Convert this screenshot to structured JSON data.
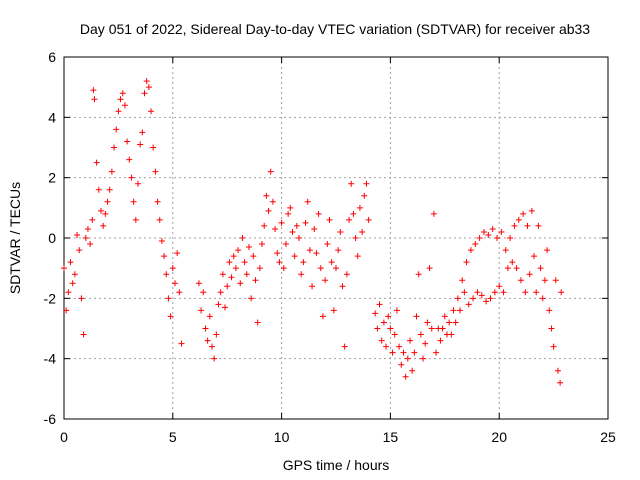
{
  "chart_data": {
    "type": "scatter",
    "title": "Day 051 of 2022, Sidereal Day-to-day VTEC variation (SDTVAR) for receiver ab33",
    "xlabel": "GPS time / hours",
    "ylabel": "SDTVAR / TECUs",
    "xlim": [
      0,
      25
    ],
    "ylim": [
      -6,
      6
    ],
    "xticks": [
      0,
      5,
      10,
      15,
      20,
      25
    ],
    "yticks": [
      -6,
      -4,
      -2,
      0,
      2,
      4,
      6
    ],
    "grid": true,
    "marker": "+",
    "color": "#ff0000",
    "series": [
      {
        "name": "SDTVAR",
        "points": [
          [
            0.0,
            -1.0
          ],
          [
            0.1,
            -2.4
          ],
          [
            0.2,
            -1.8
          ],
          [
            0.3,
            -0.8
          ],
          [
            0.4,
            -1.5
          ],
          [
            0.5,
            -1.2
          ],
          [
            0.6,
            0.1
          ],
          [
            0.7,
            -0.4
          ],
          [
            0.8,
            -2.0
          ],
          [
            0.9,
            -3.2
          ],
          [
            1.0,
            0.0
          ],
          [
            1.1,
            0.3
          ],
          [
            1.2,
            -0.2
          ],
          [
            1.3,
            0.6
          ],
          [
            1.35,
            4.9
          ],
          [
            1.4,
            4.6
          ],
          [
            1.5,
            2.5
          ],
          [
            1.6,
            1.6
          ],
          [
            1.7,
            0.9
          ],
          [
            1.8,
            0.4
          ],
          [
            1.9,
            0.8
          ],
          [
            2.0,
            1.2
          ],
          [
            2.1,
            1.6
          ],
          [
            2.2,
            2.2
          ],
          [
            2.3,
            3.0
          ],
          [
            2.4,
            3.6
          ],
          [
            2.5,
            4.2
          ],
          [
            2.6,
            4.6
          ],
          [
            2.7,
            4.8
          ],
          [
            2.8,
            4.4
          ],
          [
            2.9,
            3.2
          ],
          [
            3.0,
            2.6
          ],
          [
            3.1,
            2.0
          ],
          [
            3.2,
            1.2
          ],
          [
            3.3,
            0.6
          ],
          [
            3.4,
            1.8
          ],
          [
            3.5,
            3.1
          ],
          [
            3.6,
            3.5
          ],
          [
            3.7,
            4.8
          ],
          [
            3.8,
            5.2
          ],
          [
            3.9,
            5.0
          ],
          [
            4.0,
            4.2
          ],
          [
            4.1,
            3.0
          ],
          [
            4.2,
            2.2
          ],
          [
            4.3,
            1.2
          ],
          [
            4.4,
            0.6
          ],
          [
            4.5,
            -0.1
          ],
          [
            4.6,
            -0.6
          ],
          [
            4.7,
            -1.2
          ],
          [
            4.8,
            -2.0
          ],
          [
            4.9,
            -2.6
          ],
          [
            5.0,
            -1.0
          ],
          [
            5.1,
            -1.5
          ],
          [
            5.2,
            -0.5
          ],
          [
            5.3,
            -1.8
          ],
          [
            5.4,
            -3.5
          ],
          [
            6.2,
            -1.5
          ],
          [
            6.3,
            -2.4
          ],
          [
            6.4,
            -1.8
          ],
          [
            6.5,
            -3.0
          ],
          [
            6.6,
            -3.4
          ],
          [
            6.7,
            -2.6
          ],
          [
            6.8,
            -3.6
          ],
          [
            6.9,
            -4.0
          ],
          [
            7.0,
            -3.2
          ],
          [
            7.1,
            -2.2
          ],
          [
            7.2,
            -1.8
          ],
          [
            7.3,
            -1.2
          ],
          [
            7.4,
            -2.3
          ],
          [
            7.5,
            -1.6
          ],
          [
            7.6,
            -0.8
          ],
          [
            7.7,
            -1.3
          ],
          [
            7.8,
            -0.6
          ],
          [
            7.9,
            -1.0
          ],
          [
            8.0,
            -0.4
          ],
          [
            8.1,
            -1.5
          ],
          [
            8.2,
            0.0
          ],
          [
            8.3,
            -0.8
          ],
          [
            8.4,
            -1.2
          ],
          [
            8.5,
            -0.3
          ],
          [
            8.6,
            -2.0
          ],
          [
            8.7,
            -0.6
          ],
          [
            8.8,
            -1.4
          ],
          [
            8.9,
            -2.8
          ],
          [
            9.0,
            -1.0
          ],
          [
            9.1,
            -0.2
          ],
          [
            9.2,
            0.4
          ],
          [
            9.3,
            1.4
          ],
          [
            9.4,
            0.9
          ],
          [
            9.5,
            2.2
          ],
          [
            9.6,
            1.2
          ],
          [
            9.7,
            0.3
          ],
          [
            9.8,
            -0.5
          ],
          [
            9.9,
            -0.8
          ],
          [
            10.0,
            0.5
          ],
          [
            10.1,
            -1.0
          ],
          [
            10.2,
            -0.2
          ],
          [
            10.3,
            0.8
          ],
          [
            10.4,
            1.0
          ],
          [
            10.5,
            0.2
          ],
          [
            10.6,
            -0.6
          ],
          [
            10.7,
            0.4
          ],
          [
            10.8,
            0.0
          ],
          [
            10.9,
            -1.2
          ],
          [
            11.0,
            -0.8
          ],
          [
            11.1,
            0.5
          ],
          [
            11.2,
            1.2
          ],
          [
            11.3,
            -0.4
          ],
          [
            11.4,
            -1.6
          ],
          [
            11.5,
            0.3
          ],
          [
            11.6,
            -0.5
          ],
          [
            11.7,
            0.8
          ],
          [
            11.8,
            -1.0
          ],
          [
            11.9,
            -2.6
          ],
          [
            12.0,
            -1.4
          ],
          [
            12.1,
            -0.2
          ],
          [
            12.2,
            0.6
          ],
          [
            12.3,
            -0.8
          ],
          [
            12.4,
            -2.4
          ],
          [
            12.5,
            -1.0
          ],
          [
            12.6,
            -0.4
          ],
          [
            12.7,
            0.2
          ],
          [
            12.8,
            -1.6
          ],
          [
            12.9,
            -3.6
          ],
          [
            13.0,
            -1.2
          ],
          [
            13.1,
            0.6
          ],
          [
            13.2,
            1.8
          ],
          [
            13.3,
            0.8
          ],
          [
            13.4,
            0.0
          ],
          [
            13.5,
            -0.6
          ],
          [
            13.6,
            1.0
          ],
          [
            13.7,
            0.2
          ],
          [
            13.8,
            1.4
          ],
          [
            13.9,
            1.8
          ],
          [
            14.0,
            0.6
          ],
          [
            14.3,
            -2.5
          ],
          [
            14.4,
            -3.0
          ],
          [
            14.5,
            -2.2
          ],
          [
            14.6,
            -3.4
          ],
          [
            14.7,
            -2.8
          ],
          [
            14.8,
            -3.6
          ],
          [
            14.9,
            -2.6
          ],
          [
            15.0,
            -3.0
          ],
          [
            15.1,
            -3.8
          ],
          [
            15.2,
            -3.2
          ],
          [
            15.3,
            -2.4
          ],
          [
            15.4,
            -3.6
          ],
          [
            15.5,
            -4.2
          ],
          [
            15.6,
            -3.8
          ],
          [
            15.7,
            -4.6
          ],
          [
            15.8,
            -4.0
          ],
          [
            15.9,
            -3.4
          ],
          [
            16.0,
            -4.4
          ],
          [
            16.1,
            -3.8
          ],
          [
            16.2,
            -2.6
          ],
          [
            16.3,
            -1.2
          ],
          [
            16.4,
            -3.2
          ],
          [
            16.5,
            -4.0
          ],
          [
            16.6,
            -3.5
          ],
          [
            16.7,
            -2.8
          ],
          [
            16.8,
            -1.0
          ],
          [
            16.9,
            -3.0
          ],
          [
            17.0,
            0.8
          ],
          [
            17.1,
            -3.8
          ],
          [
            17.2,
            -3.0
          ],
          [
            17.3,
            -3.4
          ],
          [
            17.4,
            -3.0
          ],
          [
            17.5,
            -2.6
          ],
          [
            17.6,
            -3.2
          ],
          [
            17.7,
            -2.8
          ],
          [
            17.8,
            -3.2
          ],
          [
            17.9,
            -2.4
          ],
          [
            18.0,
            -2.8
          ],
          [
            18.1,
            -2.0
          ],
          [
            18.2,
            -2.4
          ],
          [
            18.3,
            -1.4
          ],
          [
            18.4,
            -1.8
          ],
          [
            18.5,
            -0.8
          ],
          [
            18.6,
            -2.2
          ],
          [
            18.7,
            -0.4
          ],
          [
            18.8,
            -2.0
          ],
          [
            18.9,
            -0.2
          ],
          [
            19.0,
            -1.8
          ],
          [
            19.1,
            0.0
          ],
          [
            19.2,
            -1.9
          ],
          [
            19.3,
            0.2
          ],
          [
            19.4,
            -2.1
          ],
          [
            19.5,
            0.1
          ],
          [
            19.6,
            -2.0
          ],
          [
            19.7,
            0.3
          ],
          [
            19.8,
            -1.8
          ],
          [
            19.9,
            0.0
          ],
          [
            20.0,
            -1.6
          ],
          [
            20.1,
            0.2
          ],
          [
            20.2,
            -1.8
          ],
          [
            20.3,
            -0.4
          ],
          [
            20.4,
            -1.0
          ],
          [
            20.5,
            0.0
          ],
          [
            20.6,
            -0.8
          ],
          [
            20.7,
            0.4
          ],
          [
            20.8,
            -1.0
          ],
          [
            20.9,
            0.6
          ],
          [
            21.0,
            -1.4
          ],
          [
            21.1,
            0.8
          ],
          [
            21.2,
            -1.8
          ],
          [
            21.3,
            0.4
          ],
          [
            21.4,
            -1.2
          ],
          [
            21.5,
            0.9
          ],
          [
            21.6,
            -0.6
          ],
          [
            21.7,
            -1.8
          ],
          [
            21.8,
            0.4
          ],
          [
            21.9,
            -1.0
          ],
          [
            22.0,
            -2.0
          ],
          [
            22.1,
            -1.4
          ],
          [
            22.2,
            -0.4
          ],
          [
            22.3,
            -2.4
          ],
          [
            22.4,
            -3.0
          ],
          [
            22.5,
            -3.6
          ],
          [
            22.6,
            -1.4
          ],
          [
            22.7,
            -4.4
          ],
          [
            22.8,
            -4.8
          ],
          [
            22.85,
            -1.8
          ]
        ]
      }
    ]
  }
}
